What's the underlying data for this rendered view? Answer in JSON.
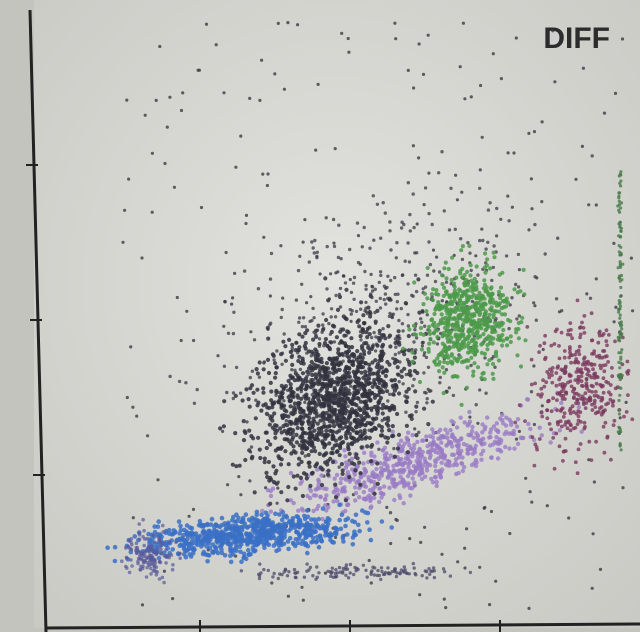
{
  "label": "DIFF"
}
